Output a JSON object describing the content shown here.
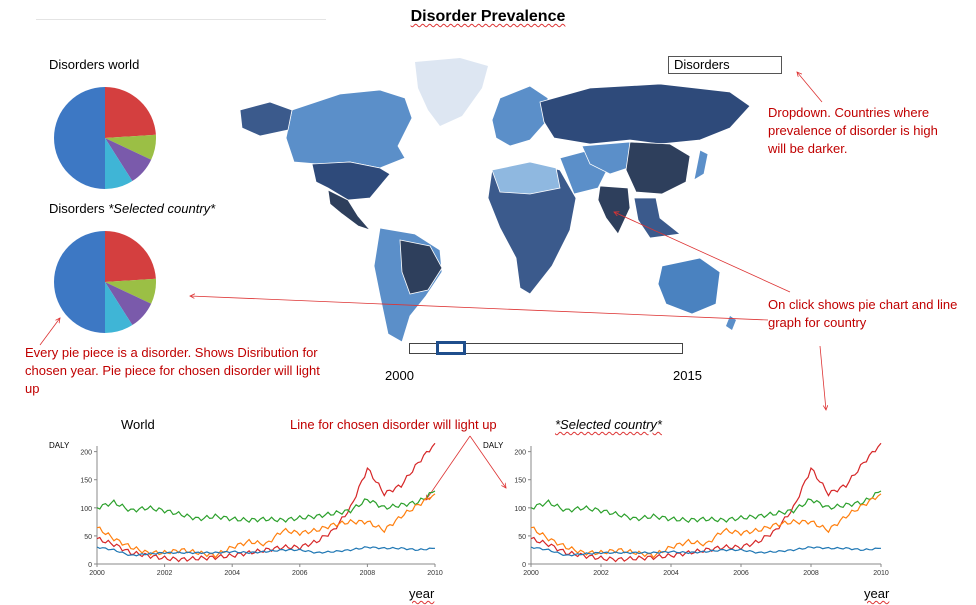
{
  "title": "Disorder Prevalence",
  "dropdown": {
    "value": "Disorders"
  },
  "pies": {
    "world_label": "Disorders world",
    "country_label_prefix": "Disorders ",
    "country_label_italic": "*Selected country*"
  },
  "slider": {
    "start_label": "2000",
    "end_label": "2015"
  },
  "annotations": {
    "dropdown_note": "Dropdown. Countries where prevalence of disorder is high will be darker.",
    "click_note": "On click shows pie chart and line graph for country",
    "pie_note": "Every pie piece is a disorder. Shows Disribution for chosen year. Pie piece for chosen disorder will light up",
    "line_note": "Line for chosen disorder will light up"
  },
  "colors": {
    "map_dark": "#2e3f5c",
    "map_mid": "#3b5a8c",
    "map_light": "#5b8fc9",
    "map_pale": "#8fb8e0",
    "greenland": "#dde6f2",
    "annotation": "#c00000",
    "slider_handle": "#1f4e8c"
  },
  "chart_data": [
    {
      "type": "pie",
      "title": "Disorders world",
      "values": [
        24,
        8,
        9,
        9,
        50
      ],
      "colors": [
        "#d43f3f",
        "#9bbf45",
        "#7a5aab",
        "#3fb5d6",
        "#3d78c4"
      ]
    },
    {
      "type": "pie",
      "title": "Disorders *Selected country*",
      "values": [
        24,
        8,
        9,
        9,
        50
      ],
      "colors": [
        "#d43f3f",
        "#9bbf45",
        "#7a5aab",
        "#3fb5d6",
        "#3d78c4"
      ]
    },
    {
      "type": "line",
      "title": "World",
      "ylabel": "DALY",
      "xlabel": "year",
      "xlim": [
        2000,
        2010
      ],
      "ylim": [
        0,
        210
      ],
      "xticks": [
        "2000",
        "2002",
        "2004",
        "2006",
        "2008",
        "2010"
      ],
      "yticks": [
        "0",
        "50",
        "100",
        "150",
        "200"
      ],
      "x": [
        2000,
        2000.5,
        2001,
        2001.5,
        2002,
        2002.5,
        2003,
        2003.5,
        2004,
        2004.5,
        2005,
        2005.5,
        2006,
        2006.5,
        2007,
        2007.5,
        2008,
        2008.5,
        2009,
        2009.5,
        2010
      ],
      "series": [
        {
          "color": "#d62728",
          "values": [
            45,
            35,
            20,
            15,
            10,
            8,
            10,
            12,
            15,
            20,
            25,
            30,
            30,
            40,
            60,
            100,
            170,
            125,
            140,
            180,
            215
          ]
        },
        {
          "color": "#2ca02c",
          "values": [
            100,
            110,
            95,
            100,
            95,
            88,
            80,
            85,
            80,
            78,
            80,
            78,
            82,
            85,
            90,
            95,
            115,
            100,
            105,
            110,
            130
          ]
        },
        {
          "color": "#ff7f0e",
          "values": [
            65,
            45,
            30,
            20,
            20,
            25,
            20,
            15,
            30,
            40,
            35,
            60,
            55,
            60,
            70,
            75,
            75,
            60,
            85,
            105,
            125
          ]
        },
        {
          "color": "#1f77b4",
          "values": [
            30,
            25,
            15,
            18,
            20,
            20,
            20,
            20,
            22,
            20,
            22,
            25,
            25,
            20,
            22,
            25,
            30,
            28,
            28,
            25,
            28
          ]
        }
      ]
    },
    {
      "type": "line",
      "title": "*Selected country*",
      "ylabel": "DALY",
      "xlabel": "year",
      "xlim": [
        2000,
        2010
      ],
      "ylim": [
        0,
        210
      ],
      "xticks": [
        "2000",
        "2002",
        "2004",
        "2006",
        "2008",
        "2010"
      ],
      "yticks": [
        "0",
        "50",
        "100",
        "150",
        "200"
      ],
      "x": [
        2000,
        2000.5,
        2001,
        2001.5,
        2002,
        2002.5,
        2003,
        2003.5,
        2004,
        2004.5,
        2005,
        2005.5,
        2006,
        2006.5,
        2007,
        2007.5,
        2008,
        2008.5,
        2009,
        2009.5,
        2010
      ],
      "series": [
        {
          "color": "#d62728",
          "values": [
            45,
            35,
            20,
            15,
            10,
            8,
            10,
            12,
            15,
            20,
            25,
            30,
            30,
            40,
            60,
            100,
            170,
            125,
            140,
            180,
            215
          ]
        },
        {
          "color": "#2ca02c",
          "values": [
            100,
            110,
            95,
            100,
            95,
            88,
            80,
            85,
            80,
            78,
            80,
            78,
            82,
            85,
            90,
            95,
            115,
            100,
            105,
            110,
            130
          ]
        },
        {
          "color": "#ff7f0e",
          "values": [
            65,
            45,
            30,
            20,
            20,
            25,
            20,
            15,
            30,
            40,
            35,
            60,
            55,
            60,
            70,
            75,
            75,
            60,
            85,
            105,
            125
          ]
        },
        {
          "color": "#1f77b4",
          "values": [
            30,
            25,
            15,
            18,
            20,
            20,
            20,
            20,
            22,
            20,
            22,
            25,
            25,
            20,
            22,
            25,
            30,
            28,
            28,
            25,
            28
          ]
        }
      ]
    }
  ]
}
